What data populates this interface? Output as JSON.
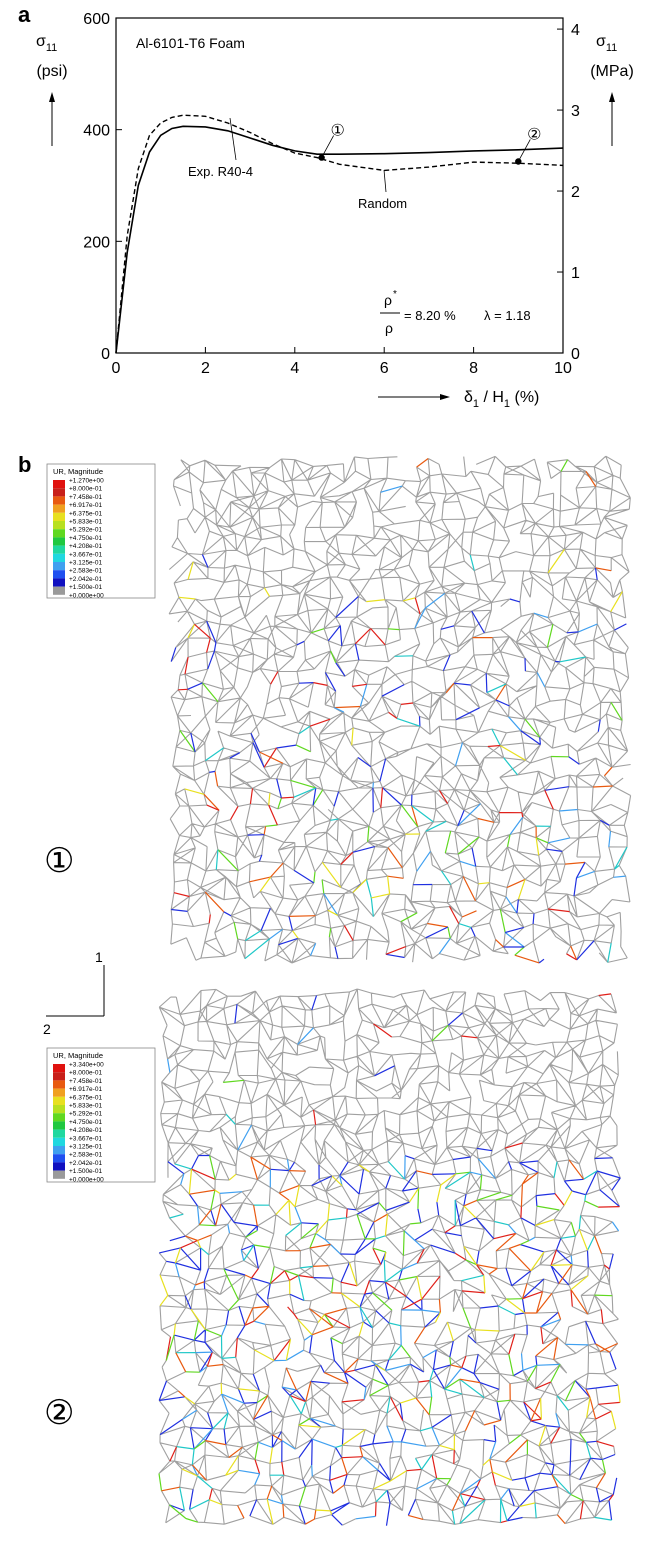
{
  "chart_data": {
    "type": "line",
    "panel_label": "a",
    "title": "Al-6101-T6 Foam",
    "x": [
      0,
      0.25,
      0.5,
      0.75,
      1,
      1.25,
      1.5,
      2,
      2.5,
      3,
      3.5,
      4,
      4.5,
      5,
      6,
      7,
      8,
      9,
      10
    ],
    "series": [
      {
        "name": "Exp. R40-4",
        "color": "#000000",
        "dashed": false,
        "values": [
          0,
          180,
          300,
          360,
          390,
          402,
          406,
          405,
          398,
          385,
          372,
          362,
          356,
          356,
          357,
          359,
          362,
          364,
          367
        ]
      },
      {
        "name": "Random",
        "color": "#000000",
        "dashed": true,
        "values": [
          0,
          210,
          330,
          390,
          412,
          422,
          426,
          424,
          412,
          395,
          375,
          358,
          350,
          338,
          327,
          333,
          342,
          340,
          336
        ]
      }
    ],
    "xlim": [
      0,
      10
    ],
    "xticks": [
      0,
      2,
      4,
      6,
      8,
      10
    ],
    "ylim": [
      0,
      600
    ],
    "yticks": [
      0,
      200,
      400,
      600
    ],
    "y2lim": [
      0,
      4.137
    ],
    "y2ticks": [
      0,
      1,
      2,
      3,
      4
    ],
    "y_label": [
      "σ",
      "11",
      "(psi)"
    ],
    "y2_label": [
      "σ",
      "11",
      "(MPa)"
    ],
    "x_label": [
      "δ",
      "1",
      " / H",
      "1",
      " (%)"
    ],
    "markers": [
      {
        "label": "①",
        "x": 4.6,
        "y": 350
      },
      {
        "label": "②",
        "x": 9.0,
        "y": 343
      }
    ],
    "density_note": [
      "ρ",
      "*",
      "ρ",
      "= 8.20 %",
      "λ = 1.18"
    ]
  },
  "panel_b": {
    "label": "b",
    "axes": [
      "1",
      "2"
    ],
    "legend_colors": [
      "#e0120f",
      "#c8201a",
      "#e85a10",
      "#f0a020",
      "#e8e020",
      "#b8e020",
      "#60d820",
      "#20c840",
      "#20d8a0",
      "#20d8e0",
      "#40a0f0",
      "#2050f0",
      "#1010c0",
      "#9a9a9a"
    ],
    "views": [
      {
        "marker": "①",
        "legend": {
          "title": "UR, Magnitude",
          "labels": [
            "+1.270e+00",
            "+8.000e-01",
            "+7.458e-01",
            "+6.917e-01",
            "+6.375e-01",
            "+5.833e-01",
            "+5.292e-01",
            "+4.750e-01",
            "+4.208e-01",
            "+3.667e-01",
            "+3.125e-01",
            "+2.583e-01",
            "+2.042e-01",
            "+1.500e-01",
            "+0.000e+00"
          ]
        }
      },
      {
        "marker": "②",
        "legend": {
          "title": "UR, Magnitude",
          "labels": [
            "+3.340e+00",
            "+8.000e-01",
            "+7.458e-01",
            "+6.917e-01",
            "+6.375e-01",
            "+5.833e-01",
            "+5.292e-01",
            "+4.750e-01",
            "+4.208e-01",
            "+3.667e-01",
            "+3.125e-01",
            "+2.583e-01",
            "+2.042e-01",
            "+1.500e-01",
            "+0.000e+00"
          ]
        }
      }
    ]
  }
}
